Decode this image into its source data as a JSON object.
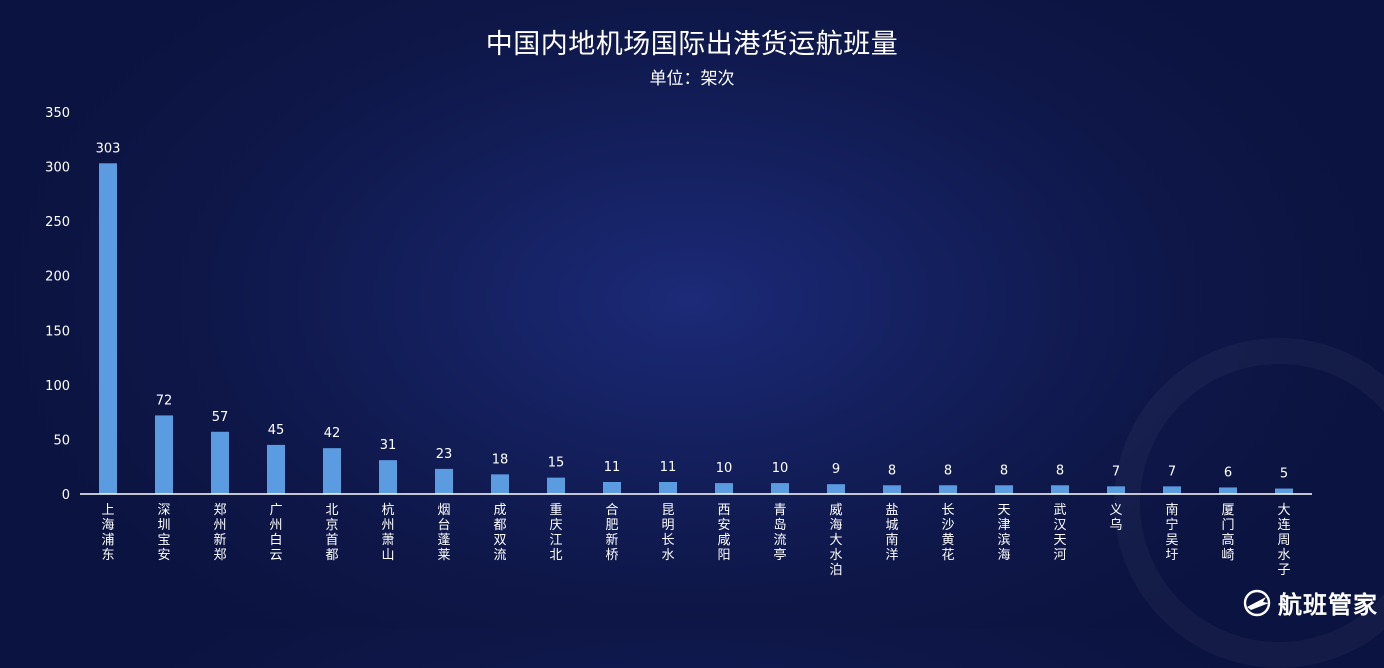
{
  "header": {
    "title": "中国内地机场国际出港货运航班量",
    "subtitle": "单位：架次"
  },
  "brand": {
    "name": "航班管家",
    "logo_icon": "airplane-globe-logo-icon"
  },
  "colors": {
    "bar": "#5b9bdf",
    "background": "#0e1748",
    "axis": "#ffffff"
  },
  "chart_data": {
    "type": "bar",
    "title": "中国内地机场国际出港货运航班量",
    "subtitle": "单位：架次",
    "xlabel": "",
    "ylabel": "",
    "ylim": [
      0,
      350
    ],
    "yticks": [
      0,
      50,
      100,
      150,
      200,
      250,
      300,
      350
    ],
    "grid": false,
    "legend": "none",
    "categories": [
      "上海浦东",
      "深圳宝安",
      "郑州新郑",
      "广州白云",
      "北京首都",
      "杭州萧山",
      "烟台蓬莱",
      "成都双流",
      "重庆江北",
      "合肥新桥",
      "昆明长水",
      "西安咸阳",
      "青岛流亭",
      "威海大水泊",
      "盐城南洋",
      "长沙黄花",
      "天津滨海",
      "武汉天河",
      "义乌",
      "南宁吴圩",
      "厦门高崎",
      "大连周水子"
    ],
    "values": [
      303,
      72,
      57,
      45,
      42,
      31,
      23,
      18,
      15,
      11,
      11,
      10,
      10,
      9,
      8,
      8,
      8,
      8,
      7,
      7,
      6,
      5
    ],
    "data_labels": true
  }
}
